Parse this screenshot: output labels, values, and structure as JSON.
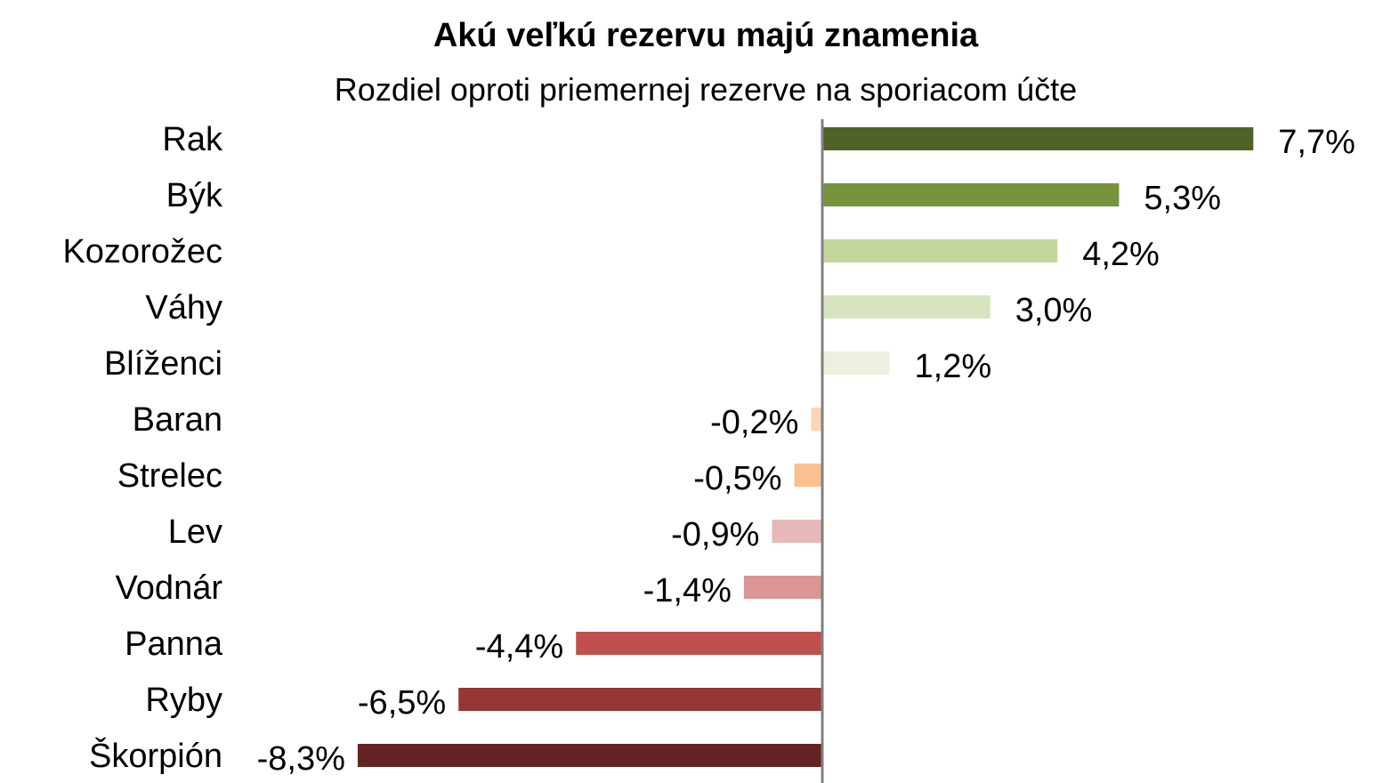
{
  "chart_data": {
    "type": "bar",
    "orientation": "horizontal",
    "title": "Akú veľkú rezervu majú znamenia",
    "subtitle": "Rozdiel oproti priemernej rezerve na sporiacom účte",
    "categories": [
      "Rak",
      "Býk",
      "Kozorožec",
      "Váhy",
      "Blíženci",
      "Baran",
      "Strelec",
      "Lev",
      "Vodnár",
      "Panna",
      "Ryby",
      "Škorpión"
    ],
    "values": [
      7.7,
      5.3,
      4.2,
      3.0,
      1.2,
      -0.2,
      -0.5,
      -0.9,
      -1.4,
      -4.4,
      -6.5,
      -8.3
    ],
    "value_labels": [
      "7,7%",
      "5,3%",
      "4,2%",
      "3,0%",
      "1,2%",
      "-0,2%",
      "-0,5%",
      "-0,9%",
      "-1,4%",
      "-4,4%",
      "-6,5%",
      "-8,3%"
    ],
    "colors": [
      "#4f6228",
      "#77933c",
      "#c3d69b",
      "#d7e4bd",
      "#ebf1de",
      "#fcd5b5",
      "#fac090",
      "#e6b9b8",
      "#d99694",
      "#c0504d",
      "#953735",
      "#632423"
    ],
    "xlim": [
      -8.3,
      7.7
    ],
    "grid": false,
    "legend": "none",
    "zero_line_color": "#808080"
  }
}
